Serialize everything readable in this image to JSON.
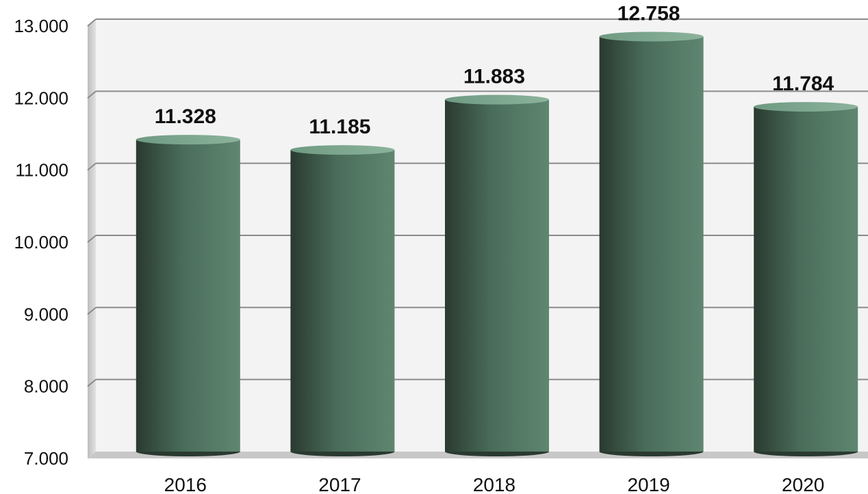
{
  "chart_data": {
    "type": "bar",
    "categories": [
      "2016",
      "2017",
      "2018",
      "2019",
      "2020"
    ],
    "values": [
      11328,
      11185,
      11883,
      12758,
      11784
    ],
    "value_labels": [
      "11.328",
      "11.185",
      "11.883",
      "12.758",
      "11.784"
    ],
    "y_ticks": [
      "7.000",
      "8.000",
      "9.000",
      "10.000",
      "11.000",
      "12.000",
      "13.000"
    ],
    "y_tick_values": [
      7000,
      8000,
      9000,
      10000,
      11000,
      12000,
      13000
    ],
    "ylim": [
      7000,
      13000
    ],
    "grid": true,
    "title": "",
    "xlabel": "",
    "ylabel": "",
    "colors": {
      "bar_dark": "#2a3a30",
      "bar_mid": "#4a6d5a",
      "bar_light": "#5f8670",
      "plot_bg": "#f3f3f3",
      "grid": "#8a8a8a"
    }
  }
}
